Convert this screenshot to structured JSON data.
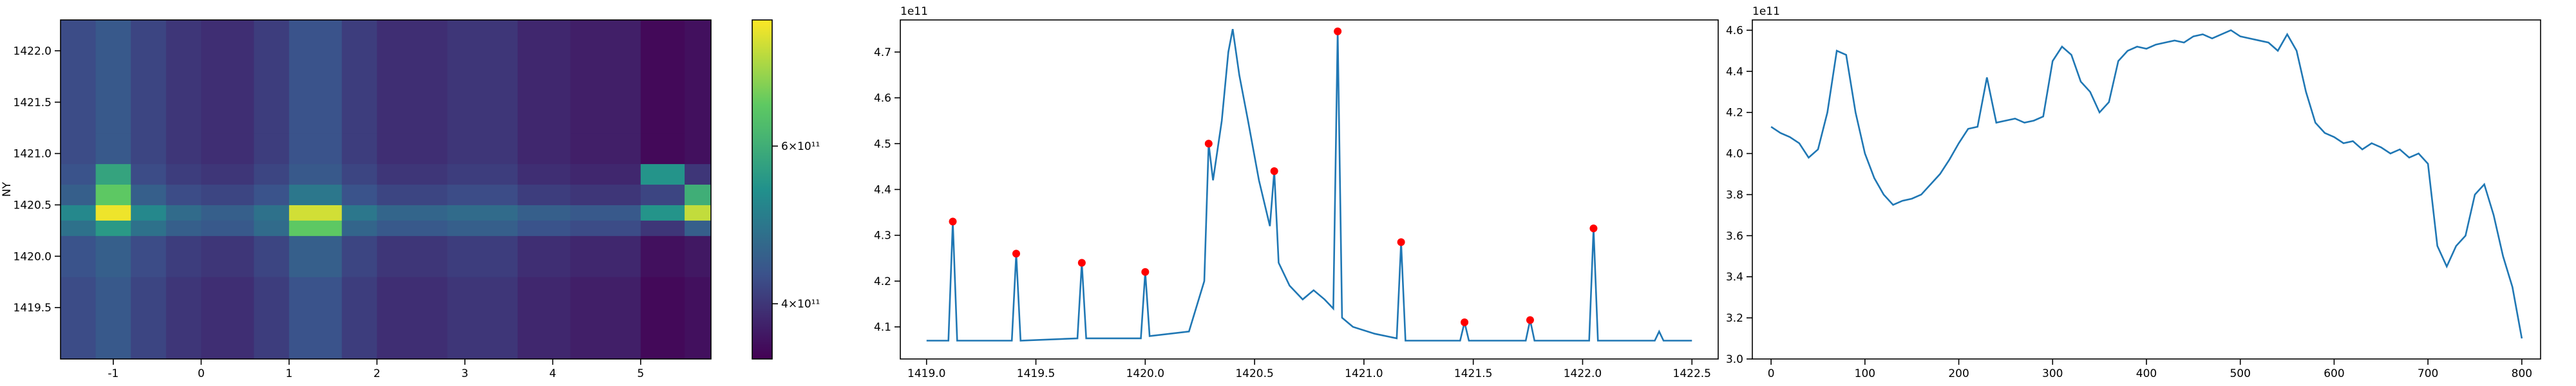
{
  "chart_data": [
    {
      "type": "heatmap",
      "y_label": "NY",
      "x_edges": [
        -1.6,
        -1.2,
        -0.8,
        -0.4,
        0,
        0.6,
        1.0,
        1.6,
        2.0,
        2.8,
        3.6,
        4.2,
        5.0,
        5.5,
        5.8
      ],
      "y_edges": [
        1419.0,
        1419.8,
        1420.2,
        1420.35,
        1420.5,
        1420.7,
        1420.9,
        1421.2,
        1422.3
      ],
      "z": [
        [
          430000000000.0,
          450000000000.0,
          420000000000.0,
          400000000000.0,
          390000000000.0,
          410000000000.0,
          440000000000.0,
          410000000000.0,
          390000000000.0,
          400000000000.0,
          380000000000.0,
          370000000000.0,
          340000000000.0,
          350000000000.0
        ],
        [
          440000000000.0,
          460000000000.0,
          430000000000.0,
          410000000000.0,
          400000000000.0,
          420000000000.0,
          460000000000.0,
          420000000000.0,
          400000000000.0,
          410000000000.0,
          390000000000.0,
          380000000000.0,
          350000000000.0,
          360000000000.0
        ],
        [
          490000000000.0,
          560000000000.0,
          490000000000.0,
          460000000000.0,
          450000000000.0,
          480000000000.0,
          650000000000.0,
          470000000000.0,
          450000000000.0,
          460000000000.0,
          440000000000.0,
          430000000000.0,
          400000000000.0,
          460000000000.0
        ],
        [
          530000000000.0,
          750000000000.0,
          530000000000.0,
          480000000000.0,
          460000000000.0,
          490000000000.0,
          730000000000.0,
          500000000000.0,
          470000000000.0,
          480000000000.0,
          460000000000.0,
          450000000000.0,
          550000000000.0,
          720000000000.0
        ],
        [
          460000000000.0,
          650000000000.0,
          460000000000.0,
          430000000000.0,
          420000000000.0,
          440000000000.0,
          500000000000.0,
          440000000000.0,
          420000000000.0,
          430000000000.0,
          410000000000.0,
          400000000000.0,
          420000000000.0,
          600000000000.0
        ],
        [
          440000000000.0,
          580000000000.0,
          430000000000.0,
          410000000000.0,
          400000000000.0,
          420000000000.0,
          450000000000.0,
          420000000000.0,
          400000000000.0,
          410000000000.0,
          390000000000.0,
          380000000000.0,
          550000000000.0,
          400000000000.0
        ],
        [
          430000000000.0,
          450000000000.0,
          420000000000.0,
          400000000000.0,
          390000000000.0,
          410000000000.0,
          440000000000.0,
          410000000000.0,
          390000000000.0,
          400000000000.0,
          380000000000.0,
          370000000000.0,
          340000000000.0,
          350000000000.0
        ],
        [
          430000000000.0,
          450000000000.0,
          420000000000.0,
          400000000000.0,
          390000000000.0,
          410000000000.0,
          440000000000.0,
          410000000000.0,
          390000000000.0,
          400000000000.0,
          380000000000.0,
          370000000000.0,
          340000000000.0,
          350000000000.0
        ]
      ],
      "xlim": [
        -1.6,
        5.8
      ],
      "xticks": [
        -1,
        0,
        1,
        2,
        3,
        4,
        5
      ],
      "ylim": [
        1419.0,
        1422.3
      ],
      "yticks": [
        {
          "value": 1419.5,
          "label": "1419.5"
        },
        {
          "value": 1420.0,
          "label": "1420.0"
        },
        {
          "value": 1420.5,
          "label": "1420.5"
        },
        {
          "value": 1421.0,
          "label": "1421.0"
        },
        {
          "value": 1421.5,
          "label": "1421.5"
        },
        {
          "value": 1422.0,
          "label": "1422.0"
        }
      ],
      "colormap": "viridis",
      "clim": [
        330000000000.0,
        760000000000.0
      ],
      "cticks": [
        {
          "value": 400000000000.0,
          "label": "4×10¹¹"
        },
        {
          "value": 600000000000.0,
          "label": "6×10¹¹"
        }
      ]
    },
    {
      "type": "line",
      "offset_text": "1e11",
      "series": [
        {
          "mode": "line",
          "color": "#1f77b4",
          "x": [
            1419.0,
            1419.1,
            1419.12,
            1419.14,
            1419.39,
            1419.41,
            1419.43,
            1419.69,
            1419.71,
            1419.73,
            1419.98,
            1420.0,
            1420.02,
            1420.2,
            1420.27,
            1420.29,
            1420.31,
            1420.35,
            1420.38,
            1420.4,
            1420.43,
            1420.47,
            1420.52,
            1420.57,
            1420.59,
            1420.61,
            1420.66,
            1420.72,
            1420.77,
            1420.82,
            1420.86,
            1420.88,
            1420.9,
            1420.95,
            1421.05,
            1421.15,
            1421.17,
            1421.19,
            1421.44,
            1421.46,
            1421.48,
            1421.74,
            1421.76,
            1421.78,
            1422.03,
            1422.05,
            1422.07,
            1422.33,
            1422.35,
            1422.37,
            1422.5
          ],
          "values": [
            4.07,
            4.07,
            4.33,
            4.07,
            4.07,
            4.26,
            4.07,
            4.075,
            4.24,
            4.075,
            4.075,
            4.22,
            4.08,
            4.09,
            4.2,
            4.5,
            4.42,
            4.55,
            4.7,
            4.75,
            4.65,
            4.55,
            4.42,
            4.32,
            4.44,
            4.24,
            4.19,
            4.16,
            4.18,
            4.16,
            4.14,
            4.745,
            4.12,
            4.1,
            4.085,
            4.075,
            4.285,
            4.07,
            4.07,
            4.11,
            4.07,
            4.07,
            4.115,
            4.07,
            4.07,
            4.315,
            4.07,
            4.07,
            4.09,
            4.07,
            4.07
          ]
        },
        {
          "mode": "markers",
          "color": "#ff0000",
          "x": [
            1419.12,
            1419.41,
            1419.71,
            1420.0,
            1420.29,
            1420.59,
            1420.88,
            1421.17,
            1421.46,
            1421.76,
            1422.05
          ],
          "values": [
            4.33,
            4.26,
            4.24,
            4.22,
            4.5,
            4.44,
            4.745,
            4.285,
            4.11,
            4.115,
            4.315
          ]
        }
      ],
      "xlim": [
        1418.88,
        1422.62
      ],
      "xticks": [
        {
          "value": 1419.0,
          "label": "1419.0"
        },
        {
          "value": 1419.5,
          "label": "1419.5"
        },
        {
          "value": 1420.0,
          "label": "1420.0"
        },
        {
          "value": 1420.5,
          "label": "1420.5"
        },
        {
          "value": 1421.0,
          "label": "1421.0"
        },
        {
          "value": 1421.5,
          "label": "1421.5"
        },
        {
          "value": 1422.0,
          "label": "1422.0"
        },
        {
          "value": 1422.5,
          "label": "1422.5"
        }
      ],
      "ylim": [
        4.03,
        4.77
      ],
      "yticks": [
        4.1,
        4.2,
        4.3,
        4.4,
        4.5,
        4.6,
        4.7
      ]
    },
    {
      "type": "line",
      "offset_text": "1e11",
      "series": [
        {
          "mode": "line",
          "color": "#1f77b4",
          "x": [
            0,
            10,
            20,
            30,
            40,
            50,
            60,
            70,
            80,
            90,
            100,
            110,
            120,
            130,
            140,
            150,
            160,
            170,
            180,
            190,
            200,
            210,
            220,
            230,
            240,
            250,
            260,
            270,
            280,
            290,
            300,
            310,
            320,
            330,
            340,
            350,
            360,
            370,
            380,
            390,
            400,
            410,
            420,
            430,
            440,
            450,
            460,
            470,
            480,
            490,
            500,
            510,
            520,
            530,
            540,
            550,
            560,
            570,
            580,
            590,
            600,
            610,
            620,
            630,
            640,
            650,
            660,
            670,
            680,
            690,
            700,
            710,
            720,
            730,
            740,
            750,
            760,
            770,
            780,
            790,
            800
          ],
          "values": [
            4.13,
            4.1,
            4.08,
            4.05,
            3.98,
            4.02,
            4.2,
            4.5,
            4.48,
            4.2,
            4.0,
            3.88,
            3.8,
            3.75,
            3.77,
            3.78,
            3.8,
            3.85,
            3.9,
            3.97,
            4.05,
            4.12,
            4.13,
            4.37,
            4.15,
            4.16,
            4.17,
            4.15,
            4.16,
            4.18,
            4.45,
            4.52,
            4.48,
            4.35,
            4.3,
            4.2,
            4.25,
            4.45,
            4.5,
            4.52,
            4.51,
            4.53,
            4.54,
            4.55,
            4.54,
            4.57,
            4.58,
            4.56,
            4.58,
            4.6,
            4.57,
            4.56,
            4.55,
            4.54,
            4.5,
            4.58,
            4.5,
            4.3,
            4.15,
            4.1,
            4.08,
            4.05,
            4.06,
            4.02,
            4.05,
            4.03,
            4.0,
            4.02,
            3.98,
            4.0,
            3.95,
            3.55,
            3.45,
            3.55,
            3.6,
            3.8,
            3.85,
            3.7,
            3.5,
            3.35,
            3.1
          ]
        }
      ],
      "xlim": [
        -20,
        820
      ],
      "xticks": [
        0,
        100,
        200,
        300,
        400,
        500,
        600,
        700,
        800
      ],
      "ylim": [
        3.0,
        4.65
      ],
      "yticks": [
        {
          "value": 3.0,
          "label": "3.0"
        },
        3.2,
        3.4,
        3.6,
        3.8,
        {
          "value": 4.0,
          "label": "4.0"
        },
        4.2,
        4.4,
        4.6
      ]
    }
  ]
}
